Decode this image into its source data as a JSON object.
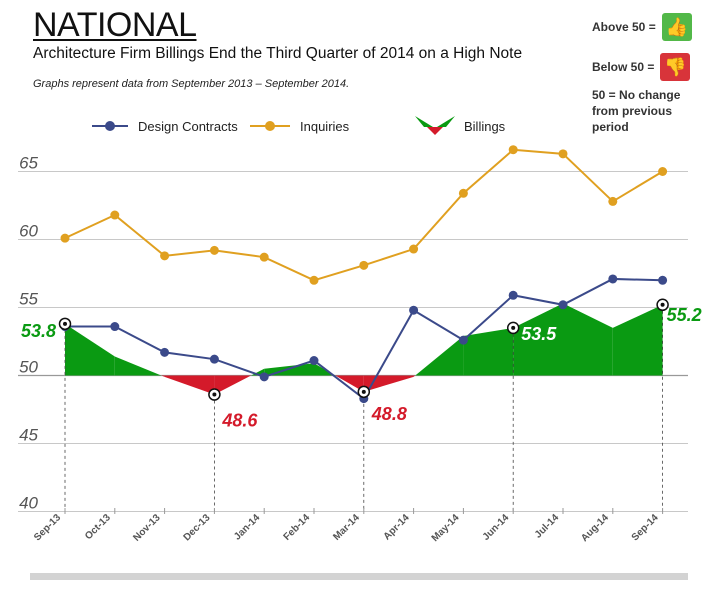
{
  "header": {
    "title": "NATIONAL",
    "subtitle": "Architecture Firm Billings End the Third Quarter of 2014 on a High Note",
    "note": "Graphs represent data from September 2013 – September 2014."
  },
  "key": {
    "above_label": "Above 50 =",
    "below_label": "Below 50 =",
    "no_change_label": "50 = No change from previous period",
    "thumbs_up_icon": "thumbs-up-icon",
    "thumbs_down_icon": "thumbs-down-icon"
  },
  "legend": [
    {
      "name": "Design Contracts",
      "color": "#3b4a8a"
    },
    {
      "name": "Inquiries",
      "color": "#e0a020"
    },
    {
      "name": "Billings",
      "color": "#0a9a12"
    }
  ],
  "colors": {
    "design": "#3b4a8a",
    "inquiries": "#e0a020",
    "billings_above": "#0a9a12",
    "billings_below": "#d41a2a",
    "grid": "#c8c8c8"
  },
  "chart_data": {
    "type": "line",
    "categories": [
      "Sep-13",
      "Oct-13",
      "Nov-13",
      "Dec-13",
      "Jan-14",
      "Feb-14",
      "Mar-14",
      "Apr-14",
      "May-14",
      "Jun-14",
      "Jul-14",
      "Aug-14",
      "Sep-14"
    ],
    "ylim": [
      40,
      67
    ],
    "yticks": [
      40,
      45,
      50,
      55,
      60,
      65
    ],
    "baseline": 50,
    "series": [
      {
        "name": "Design Contracts",
        "type": "line",
        "values": [
          53.6,
          53.6,
          51.7,
          51.2,
          49.9,
          51.1,
          48.3,
          54.8,
          52.6,
          55.9,
          55.2,
          57.1,
          57.0
        ]
      },
      {
        "name": "Inquiries",
        "type": "line",
        "values": [
          60.1,
          61.8,
          58.8,
          59.2,
          58.7,
          57.0,
          58.1,
          59.3,
          63.4,
          66.6,
          66.3,
          62.8,
          65.0
        ]
      },
      {
        "name": "Billings",
        "type": "area",
        "values": [
          53.8,
          51.4,
          49.9,
          48.6,
          50.5,
          50.9,
          48.8,
          49.9,
          52.9,
          53.5,
          55.3,
          53.5,
          55.2
        ]
      }
    ],
    "annotations": [
      {
        "index": 0,
        "label": "53.8",
        "color": "#0a9a12"
      },
      {
        "index": 3,
        "label": "48.6",
        "color": "#d41a2a"
      },
      {
        "index": 6,
        "label": "48.8",
        "color": "#d41a2a"
      },
      {
        "index": 9,
        "label": "53.5",
        "color": "#ffffff"
      },
      {
        "index": 12,
        "label": "55.2",
        "color": "#0a9a12"
      }
    ]
  }
}
